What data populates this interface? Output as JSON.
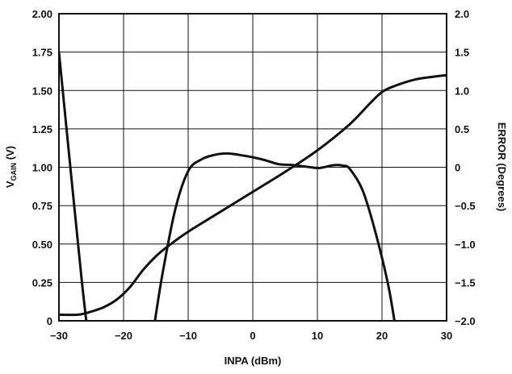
{
  "chart_data": {
    "type": "line",
    "xlabel": "INPA (dBm)",
    "ylabel_left_main": "V",
    "ylabel_left_sub": "GAIN",
    "ylabel_left_unit": " (V)",
    "ylabel_right": "ERROR (Degrees)",
    "xlim": [
      -30,
      30
    ],
    "ylim_left": [
      0,
      2.0
    ],
    "ylim_right": [
      -2.0,
      2.0
    ],
    "x_ticks": [
      -30,
      -20,
      -10,
      0,
      10,
      20,
      30
    ],
    "x_tick_labels": [
      "−30",
      "−20",
      "−10",
      "0",
      "10",
      "20",
      "30"
    ],
    "y_left_ticks": [
      0,
      0.25,
      0.5,
      0.75,
      1.0,
      1.25,
      1.5,
      1.75,
      2.0
    ],
    "y_left_tick_labels": [
      "0",
      "0.25",
      "0.50",
      "0.75",
      "1.00",
      "1.25",
      "1.50",
      "1.75",
      "2.00"
    ],
    "y_right_ticks": [
      -2.0,
      -1.5,
      -1.0,
      -0.5,
      0,
      0.5,
      1.0,
      1.5,
      2.0
    ],
    "y_right_tick_labels": [
      "−2.0",
      "−1.5",
      "−1.0",
      "−0.5",
      "0",
      "0.5",
      "1.0",
      "1.5",
      "2.0"
    ],
    "grid": true,
    "series": [
      {
        "axis": "left",
        "x": [
          -30,
          -27,
          -25,
          -23,
          -21,
          -19,
          -17,
          -15,
          -13,
          -10,
          -5,
          0,
          5,
          10,
          15,
          18,
          20,
          22,
          25,
          28,
          30
        ],
        "y": [
          0.04,
          0.04,
          0.06,
          0.09,
          0.14,
          0.22,
          0.33,
          0.42,
          0.49,
          0.58,
          0.71,
          0.84,
          0.97,
          1.11,
          1.28,
          1.41,
          1.49,
          1.53,
          1.57,
          1.59,
          1.6
        ]
      },
      {
        "axis": "right",
        "x": [
          -30,
          -28,
          -26.5,
          -25.5
        ],
        "y": [
          1.5,
          -0.2,
          -1.45,
          -2.2
        ]
      },
      {
        "axis": "right",
        "x": [
          -15.5,
          -14,
          -12,
          -10,
          -8,
          -6,
          -4,
          -2,
          0,
          2,
          4,
          6,
          8,
          10,
          11,
          12,
          13,
          14,
          15,
          17,
          19,
          21,
          22.3
        ],
        "y": [
          -2.2,
          -1.4,
          -0.55,
          -0.05,
          0.1,
          0.16,
          0.18,
          0.16,
          0.13,
          0.09,
          0.04,
          0.03,
          0.01,
          -0.01,
          0.0,
          0.02,
          0.03,
          0.02,
          -0.02,
          -0.3,
          -0.85,
          -1.55,
          -2.2
        ]
      }
    ]
  }
}
